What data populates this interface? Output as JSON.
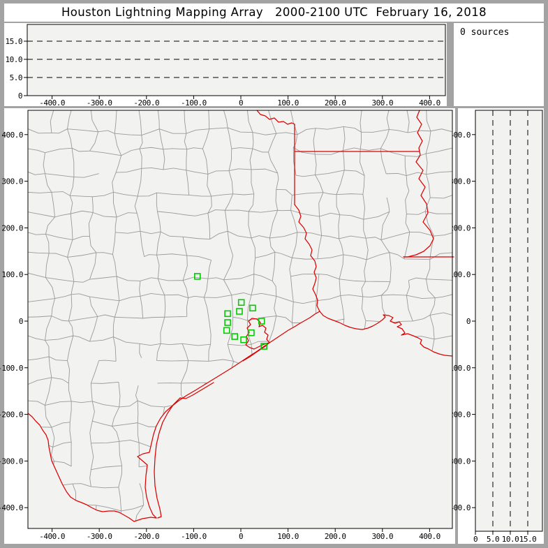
{
  "title": "Houston Lightning Mapping Array   2000-2100 UTC  February 16, 2018",
  "sources_box": {
    "label": "0 sources"
  },
  "colors": {
    "state_boundary": "#dd0000",
    "station_marker": "#00cc00",
    "county_line": "#9a9a9a",
    "plot_background": "#f2f2f0",
    "window_frame": "#a3a3a3",
    "panel_background": "#ffffff",
    "axis": "#000000",
    "grid_dash": "#000000"
  },
  "chart_data": [
    {
      "type": "scatter",
      "name": "altitude-vs-east-west",
      "position": "top",
      "title": "",
      "xlabel": "",
      "ylabel": "",
      "x_range": [
        -450,
        445
      ],
      "y_range": [
        0,
        19.6
      ],
      "x_ticks": {
        "values": [
          -400,
          -300,
          -200,
          -100,
          0,
          100,
          200,
          300,
          400
        ],
        "labels": [
          "-400.0",
          "-300.0",
          "-200.0",
          "-100.0",
          "0",
          "100.0",
          "200.0",
          "300.0",
          "400.0"
        ]
      },
      "y_ticks": {
        "values": [
          0,
          5,
          10,
          15
        ],
        "labels": [
          "0",
          "5.0",
          "10.0",
          "15.0"
        ]
      },
      "gridlines_y": [
        5,
        10,
        15
      ],
      "grid_style": "dashed",
      "series": [
        {
          "name": "lightning-sources",
          "points": []
        }
      ]
    },
    {
      "type": "scatter",
      "name": "plan-view-map",
      "position": "main",
      "title": "",
      "xlabel": "",
      "ylabel": "",
      "x_range": [
        -451,
        448
      ],
      "y_range": [
        -445,
        452
      ],
      "x_ticks": {
        "values": [
          -400,
          -300,
          -200,
          -100,
          0,
          100,
          200,
          300,
          400
        ],
        "labels": [
          "-400.0",
          "-300.0",
          "-200.0",
          "-100.0",
          "0",
          "100.0",
          "200.0",
          "300.0",
          "400.0"
        ]
      },
      "y_ticks": {
        "values": [
          -400,
          -300,
          -200,
          -100,
          0,
          100,
          200,
          300,
          400
        ],
        "labels": [
          "-400.0",
          "-300.0",
          "-200.0",
          "-100.0",
          "0",
          "100.0",
          "200.0",
          "300.0",
          "400.0"
        ]
      },
      "map_layers": [
        "county-boundaries-gray",
        "state-boundaries-red",
        "coastline-red"
      ],
      "series": [
        {
          "name": "lma-stations",
          "marker": "open-square",
          "color": "#00cc00",
          "points": [
            {
              "x": -92,
              "y": 96
            },
            {
              "x": 1,
              "y": 40
            },
            {
              "x": 25,
              "y": 28
            },
            {
              "x": -3,
              "y": 21
            },
            {
              "x": -28,
              "y": 16
            },
            {
              "x": -28,
              "y": -3
            },
            {
              "x": 44,
              "y": 0
            },
            {
              "x": -30,
              "y": -20
            },
            {
              "x": 22,
              "y": -25
            },
            {
              "x": -13,
              "y": -33
            },
            {
              "x": 6,
              "y": -40
            },
            {
              "x": 49,
              "y": -54
            }
          ]
        },
        {
          "name": "lightning-sources",
          "points": []
        }
      ]
    },
    {
      "type": "scatter",
      "name": "altitude-vs-north-south",
      "position": "right",
      "title": "",
      "xlabel": "",
      "ylabel": "",
      "x_range": [
        0,
        19.2
      ],
      "y_range": [
        -445,
        452
      ],
      "x_ticks": {
        "values": [
          0,
          5,
          10,
          15
        ],
        "labels": [
          "0",
          "5.0",
          "10.0",
          "15.0"
        ]
      },
      "y_ticks": {
        "values": [
          -400,
          -300,
          -200,
          -100,
          0,
          100,
          200,
          300,
          400
        ],
        "labels": [
          "-400.0",
          "-300.0",
          "-200.0",
          "-100.0",
          "0",
          "100.0",
          "200.0",
          "300.0",
          "400.0"
        ]
      },
      "gridlines_x": [
        5,
        10,
        15
      ],
      "grid_style": "dashed",
      "series": [
        {
          "name": "lightning-sources",
          "points": []
        }
      ]
    }
  ]
}
